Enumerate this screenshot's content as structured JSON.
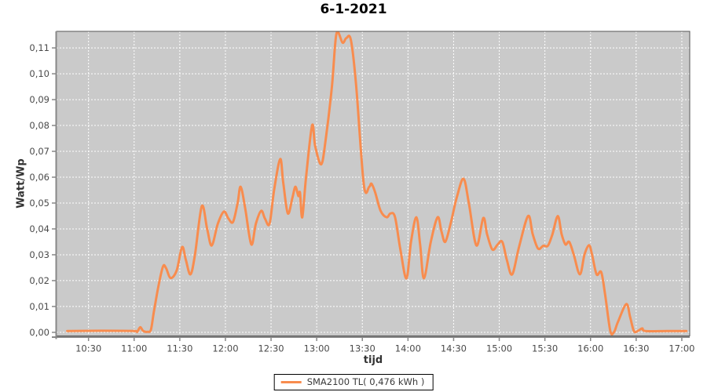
{
  "title": "6-1-2021",
  "colors": {
    "series": "#f88c4e",
    "plot_bg": "#cacaca",
    "grid": "#ffffff",
    "plot_border": "#555555",
    "axis_line": "#888888",
    "tick_label": "#4a4a4a",
    "title_color": "#000000"
  },
  "chart_data": {
    "type": "line",
    "title": "6-1-2021",
    "xlabel": "tijd",
    "ylabel": "Watt/Wp",
    "legend_position": "bottom-center",
    "grid": true,
    "legend": [
      {
        "name": "SMA2100 TL( 0,476 kWh )",
        "color": "#f88c4e"
      }
    ],
    "x_unit": "minutes-from-midnight",
    "x_range": [
      609,
      1025.2
    ],
    "y_range": [
      -0.0014,
      0.1164
    ],
    "x_ticks": [
      {
        "t": 630,
        "label": "10:30"
      },
      {
        "t": 660,
        "label": "11:00"
      },
      {
        "t": 690,
        "label": "11:30"
      },
      {
        "t": 720,
        "label": "12:00"
      },
      {
        "t": 750,
        "label": "12:30"
      },
      {
        "t": 780,
        "label": "13:00"
      },
      {
        "t": 810,
        "label": "13:30"
      },
      {
        "t": 840,
        "label": "14:00"
      },
      {
        "t": 870,
        "label": "14:30"
      },
      {
        "t": 900,
        "label": "15:00"
      },
      {
        "t": 930,
        "label": "15:30"
      },
      {
        "t": 960,
        "label": "16:00"
      },
      {
        "t": 990,
        "label": "16:30"
      },
      {
        "t": 1020,
        "label": "17:00"
      }
    ],
    "y_ticks": [
      {
        "v": 0.0,
        "label": "0,00"
      },
      {
        "v": 0.01,
        "label": "0,01"
      },
      {
        "v": 0.02,
        "label": "0,02"
      },
      {
        "v": 0.03,
        "label": "0,03"
      },
      {
        "v": 0.04,
        "label": "0,04"
      },
      {
        "v": 0.05,
        "label": "0,05"
      },
      {
        "v": 0.06,
        "label": "0,06"
      },
      {
        "v": 0.07,
        "label": "0,07"
      },
      {
        "v": 0.08,
        "label": "0,08"
      },
      {
        "v": 0.09,
        "label": "0,09"
      },
      {
        "v": 0.1,
        "label": "0,10"
      },
      {
        "v": 0.11,
        "label": "0,11"
      }
    ],
    "series": [
      {
        "name": "SMA2100 TL( 0,476 kWh )",
        "points": [
          [
            616,
            0.0005
          ],
          [
            640,
            0.0006
          ],
          [
            660,
            0.0005
          ],
          [
            662,
            0.0002
          ],
          [
            664,
            0.002
          ],
          [
            666,
            0.0005
          ],
          [
            669,
            0.0002
          ],
          [
            671,
            0.001
          ],
          [
            673,
            0.008
          ],
          [
            676,
            0.018
          ],
          [
            679,
            0.0255
          ],
          [
            681,
            0.0248
          ],
          [
            684,
            0.021
          ],
          [
            688,
            0.024
          ],
          [
            691.5,
            0.033
          ],
          [
            694,
            0.028
          ],
          [
            697,
            0.0224
          ],
          [
            700,
            0.03
          ],
          [
            704.5,
            0.0488
          ],
          [
            708,
            0.04
          ],
          [
            711,
            0.0336
          ],
          [
            715,
            0.042
          ],
          [
            719,
            0.0467
          ],
          [
            722,
            0.044
          ],
          [
            725,
            0.0427
          ],
          [
            728,
            0.05
          ],
          [
            730,
            0.0563
          ],
          [
            733,
            0.048
          ],
          [
            737,
            0.034
          ],
          [
            740,
            0.042
          ],
          [
            743.5,
            0.047
          ],
          [
            746,
            0.044
          ],
          [
            749,
            0.042
          ],
          [
            752,
            0.055
          ],
          [
            756,
            0.067
          ],
          [
            758,
            0.058
          ],
          [
            761,
            0.046
          ],
          [
            764,
            0.052
          ],
          [
            766,
            0.0563
          ],
          [
            768,
            0.0527
          ],
          [
            769,
            0.054
          ],
          [
            770.5,
            0.0445
          ],
          [
            773,
            0.06
          ],
          [
            777,
            0.08
          ],
          [
            779,
            0.072
          ],
          [
            783,
            0.065
          ],
          [
            786,
            0.075
          ],
          [
            790,
            0.095
          ],
          [
            793,
            0.1155
          ],
          [
            797,
            0.112
          ],
          [
            799.5,
            0.1138
          ],
          [
            802.5,
            0.113
          ],
          [
            806,
            0.095
          ],
          [
            811,
            0.057
          ],
          [
            814.5,
            0.0563
          ],
          [
            816,
            0.0575
          ],
          [
            818.5,
            0.054
          ],
          [
            822,
            0.047
          ],
          [
            826,
            0.0445
          ],
          [
            828.5,
            0.046
          ],
          [
            831.5,
            0.0445
          ],
          [
            835,
            0.032
          ],
          [
            839,
            0.0209
          ],
          [
            842,
            0.035
          ],
          [
            845.5,
            0.0445
          ],
          [
            848,
            0.034
          ],
          [
            850.5,
            0.0209
          ],
          [
            855,
            0.035
          ],
          [
            859.5,
            0.0445
          ],
          [
            862,
            0.039
          ],
          [
            864.5,
            0.035
          ],
          [
            868,
            0.042
          ],
          [
            872,
            0.052
          ],
          [
            876.5,
            0.0594
          ],
          [
            880,
            0.05
          ],
          [
            885,
            0.0336
          ],
          [
            889.5,
            0.0442
          ],
          [
            892,
            0.038
          ],
          [
            895.5,
            0.032
          ],
          [
            899,
            0.034
          ],
          [
            902,
            0.035
          ],
          [
            905,
            0.028
          ],
          [
            908.5,
            0.0224
          ],
          [
            913,
            0.033
          ],
          [
            919,
            0.045
          ],
          [
            922,
            0.038
          ],
          [
            925.5,
            0.0324
          ],
          [
            929,
            0.0335
          ],
          [
            932,
            0.0335
          ],
          [
            935,
            0.038
          ],
          [
            938.5,
            0.045
          ],
          [
            941,
            0.038
          ],
          [
            943.5,
            0.034
          ],
          [
            946,
            0.035
          ],
          [
            949,
            0.03
          ],
          [
            953,
            0.0224
          ],
          [
            956,
            0.03
          ],
          [
            959,
            0.0337
          ],
          [
            961,
            0.03
          ],
          [
            964,
            0.0224
          ],
          [
            967,
            0.0233
          ],
          [
            969.5,
            0.015
          ],
          [
            973,
            0.0005
          ],
          [
            975.5,
            0.0002
          ],
          [
            978,
            0.004
          ],
          [
            983.5,
            0.0109
          ],
          [
            986,
            0.006
          ],
          [
            988.5,
            0.0005
          ],
          [
            991,
            0.0005
          ],
          [
            994,
            0.0015
          ],
          [
            996,
            0.0005
          ],
          [
            1010,
            0.0005
          ],
          [
            1023,
            0.0005
          ]
        ]
      }
    ]
  }
}
